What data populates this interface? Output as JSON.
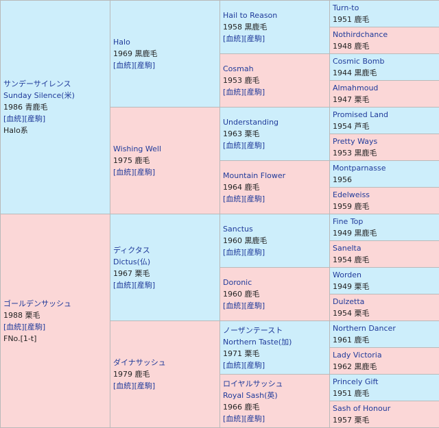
{
  "sire": {
    "name": "サンデーサイレンス",
    "name_en": "Sunday Silence(米)",
    "info": "1986 青鹿毛",
    "links": "[血統][産駒]",
    "note": "Halo系"
  },
  "dam": {
    "name": "ゴールデンサッシュ",
    "info": "1988 栗毛",
    "links": "[血統][産駒]",
    "note": "FNo.[1-t]"
  },
  "g2": [
    {
      "name": "Halo",
      "info": "1969 黒鹿毛",
      "links": "[血統][産駒]"
    },
    {
      "name": "Wishing Well",
      "info": "1975 鹿毛",
      "links": "[血統][産駒]"
    },
    {
      "name": "ディクタス",
      "name_en": "Dictus(仏)",
      "info": "1967 栗毛",
      "links": "[血統][産駒]"
    },
    {
      "name": "ダイナサッシュ",
      "info": "1979 鹿毛",
      "links": "[血統][産駒]"
    }
  ],
  "g3": [
    {
      "name": "Hail to Reason",
      "info": "1958 黒鹿毛",
      "links": "[血統][産駒]"
    },
    {
      "name": "Cosmah",
      "info": "1953 鹿毛",
      "links": "[血統][産駒]"
    },
    {
      "name": "Understanding",
      "info": "1963 栗毛",
      "links": "[血統][産駒]"
    },
    {
      "name": "Mountain Flower",
      "info": "1964 鹿毛",
      "links": "[血統][産駒]"
    },
    {
      "name": "Sanctus",
      "info": "1960 黒鹿毛",
      "links": "[血統][産駒]"
    },
    {
      "name": "Doronic",
      "info": "1960 鹿毛",
      "links": "[血統][産駒]"
    },
    {
      "name": "ノーザンテースト",
      "name_en": "Northern Taste(加)",
      "info": "1971 栗毛",
      "links": "[血統][産駒]"
    },
    {
      "name": "ロイヤルサッシュ",
      "name_en": "Royal Sash(英)",
      "info": "1966 鹿毛",
      "links": "[血統][産駒]"
    }
  ],
  "g4": [
    {
      "name": "Turn-to",
      "info": "1951 鹿毛"
    },
    {
      "name": "Nothirdchance",
      "info": "1948 鹿毛"
    },
    {
      "name": "Cosmic Bomb",
      "info": "1944 黒鹿毛"
    },
    {
      "name": "Almahmoud",
      "info": "1947 栗毛"
    },
    {
      "name": "Promised Land",
      "info": "1954 芦毛"
    },
    {
      "name": "Pretty Ways",
      "info": "1953 黒鹿毛"
    },
    {
      "name": "Montparnasse",
      "info": "1956"
    },
    {
      "name": "Edelweiss",
      "info": "1959 鹿毛"
    },
    {
      "name": "Fine Top",
      "info": "1949 黒鹿毛"
    },
    {
      "name": "Sanelta",
      "info": "1954 鹿毛"
    },
    {
      "name": "Worden",
      "info": "1949 栗毛"
    },
    {
      "name": "Dulzetta",
      "info": "1954 栗毛"
    },
    {
      "name": "Northern Dancer",
      "info": "1961 鹿毛"
    },
    {
      "name": "Lady Victoria",
      "info": "1962 黒鹿毛"
    },
    {
      "name": "Princely Gift",
      "info": "1951 鹿毛"
    },
    {
      "name": "Sash of Honour",
      "info": "1957 栗毛"
    }
  ]
}
